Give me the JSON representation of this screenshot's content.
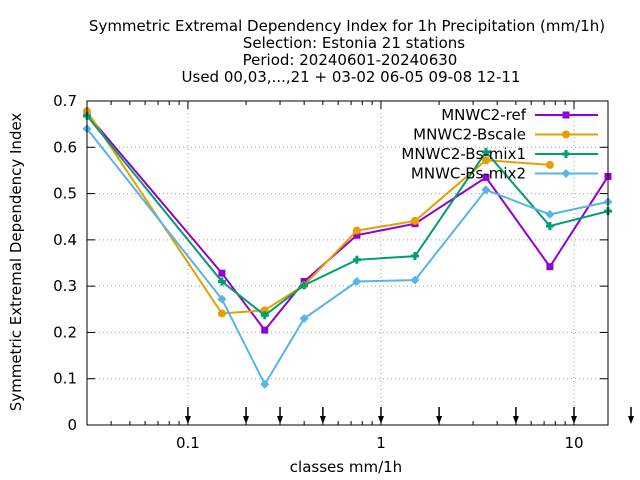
{
  "titles": {
    "line1": "Symmetric Extremal Dependency Index  for 1h Precipitation (mm/1h)",
    "line2": "Selection: Estonia     21 stations",
    "line3": "Period: 20240601-20240630",
    "line4": "Used 00,03,...,21 + 03-02 06-05 09-08 12-11"
  },
  "chart_data": {
    "type": "line",
    "xlabel": "classes mm/1h",
    "ylabel": "Symmetric Extremal Dependency Index",
    "xscale": "log",
    "xlim": [
      0.03,
      15
    ],
    "ylim": [
      0,
      0.7
    ],
    "grid": true,
    "legend_position": "top-right",
    "x_ticks": [
      {
        "value": 0.1,
        "label": "0.1"
      },
      {
        "value": 1,
        "label": "1"
      },
      {
        "value": 10,
        "label": "10"
      }
    ],
    "y_ticks": [
      {
        "value": 0,
        "label": "0"
      },
      {
        "value": 0.1,
        "label": "0.1"
      },
      {
        "value": 0.2,
        "label": "0.2"
      },
      {
        "value": 0.3,
        "label": "0.3"
      },
      {
        "value": 0.4,
        "label": "0.4"
      },
      {
        "value": 0.5,
        "label": "0.5"
      },
      {
        "value": 0.6,
        "label": "0.6"
      },
      {
        "value": 0.7,
        "label": "0.7"
      }
    ],
    "class_markers": [
      0.1,
      0.2,
      0.3,
      0.5,
      1,
      2,
      5,
      10,
      20
    ],
    "series": [
      {
        "name": "MNWC2-ref",
        "color": "#9400d3",
        "marker": "filled-square",
        "x": [
          0.03,
          0.15,
          0.25,
          0.4,
          0.75,
          1.5,
          3.5,
          7.5,
          15
        ],
        "y": [
          0.672,
          0.328,
          0.205,
          0.31,
          0.41,
          0.435,
          0.535,
          0.342,
          0.537
        ]
      },
      {
        "name": "MNWC2-Bscale",
        "color": "#e69f00",
        "marker": "filled-circle",
        "x": [
          0.03,
          0.15,
          0.25,
          0.4,
          0.75,
          1.5,
          3.5,
          7.5
        ],
        "y": [
          0.678,
          0.241,
          0.248,
          0.302,
          0.42,
          0.441,
          0.572,
          0.562
        ]
      },
      {
        "name": "MNWC2-Bs-mix1",
        "color": "#009e73",
        "marker": "filled-plus",
        "x": [
          0.03,
          0.15,
          0.25,
          0.4,
          0.75,
          1.5,
          3.5,
          7.5,
          15
        ],
        "y": [
          0.668,
          0.31,
          0.237,
          0.302,
          0.357,
          0.365,
          0.59,
          0.43,
          0.462
        ]
      },
      {
        "name": "MNWC-Bs-mix2",
        "color": "#56b4e9",
        "marker": "filled-diamond",
        "x": [
          0.03,
          0.15,
          0.25,
          0.4,
          0.75,
          1.5,
          3.5,
          7.5,
          15
        ],
        "y": [
          0.64,
          0.272,
          0.088,
          0.23,
          0.31,
          0.313,
          0.508,
          0.455,
          0.482
        ]
      }
    ]
  }
}
